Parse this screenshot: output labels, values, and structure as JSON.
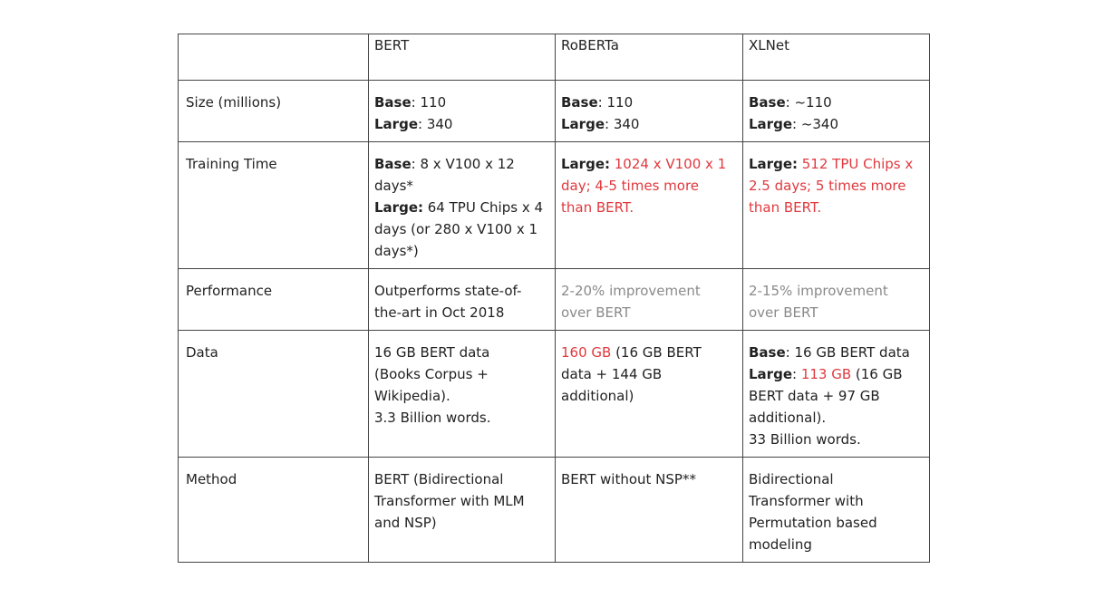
{
  "header": {
    "blank": "",
    "col1": "BERT",
    "col2": "RoBERTa",
    "col3": "XLNet"
  },
  "rows": {
    "size": {
      "label": "Size (millions)",
      "bert": {
        "base_k": "Base",
        "base_v": ": 110",
        "large_k": "Large",
        "large_v": ": 340"
      },
      "roberta": {
        "base_k": "Base",
        "base_v": ": 110",
        "large_k": "Large",
        "large_v": ": 340"
      },
      "xlnet": {
        "base_k": "Base",
        "base_v": ": ~110",
        "large_k": "Large",
        "large_v": ": ~340"
      }
    },
    "training": {
      "label": "Training Time",
      "bert": {
        "base_k": "Base",
        "base_v1": ": 8 x V100 x 12",
        "base_v2": "days*",
        "large_k": "Large:",
        "large_v1": " 64 TPU Chips x 4",
        "large_v2": "days (or 280 x V100 x 1",
        "large_v3": "days*)"
      },
      "roberta": {
        "large_k": "Large:",
        "l1": " 1024 x V100 x 1",
        "l2": "day; 4-5 times more",
        "l3": "than BERT."
      },
      "xlnet": {
        "large_k": "Large:",
        "l1": " 512 TPU Chips x",
        "l2": "2.5 days; 5 times more",
        "l3": "than BERT."
      }
    },
    "performance": {
      "label": "Performance",
      "bert": {
        "l1": "Outperforms state-of-",
        "l2": "the-art in Oct 2018"
      },
      "roberta": {
        "l1": "2-20% improvement",
        "l2": "over BERT"
      },
      "xlnet": {
        "l1": "2-15% improvement",
        "l2": "over BERT"
      }
    },
    "data": {
      "label": "Data",
      "bert": {
        "l1": "16 GB BERT data",
        "l2": "(Books Corpus +",
        "l3": "Wikipedia).",
        "l4": "3.3 Billion words."
      },
      "roberta": {
        "red": "160 GB",
        "l1": " (16 GB BERT",
        "l2": "data + 144 GB",
        "l3": "additional)"
      },
      "xlnet": {
        "base_k": "Base",
        "base_v": ": 16 GB BERT data",
        "large_k": "Large",
        "large_sep": ": ",
        "large_red": "113 GB",
        "large_v": " (16 GB",
        "l3": "BERT data + 97 GB",
        "l4": "additional).",
        "l5": "33 Billion words."
      }
    },
    "method": {
      "label": "Method",
      "bert": {
        "l1": "BERT (Bidirectional",
        "l2": "Transformer with MLM",
        "l3": "and NSP)"
      },
      "roberta": {
        "l1": "BERT without NSP**"
      },
      "xlnet": {
        "l1": "Bidirectional",
        "l2": "Transformer with",
        "l3": "Permutation based",
        "l4": "modeling"
      }
    }
  },
  "colors": {
    "highlight": "#e0393e",
    "muted": "#8a8a8a",
    "border": "#444444"
  }
}
